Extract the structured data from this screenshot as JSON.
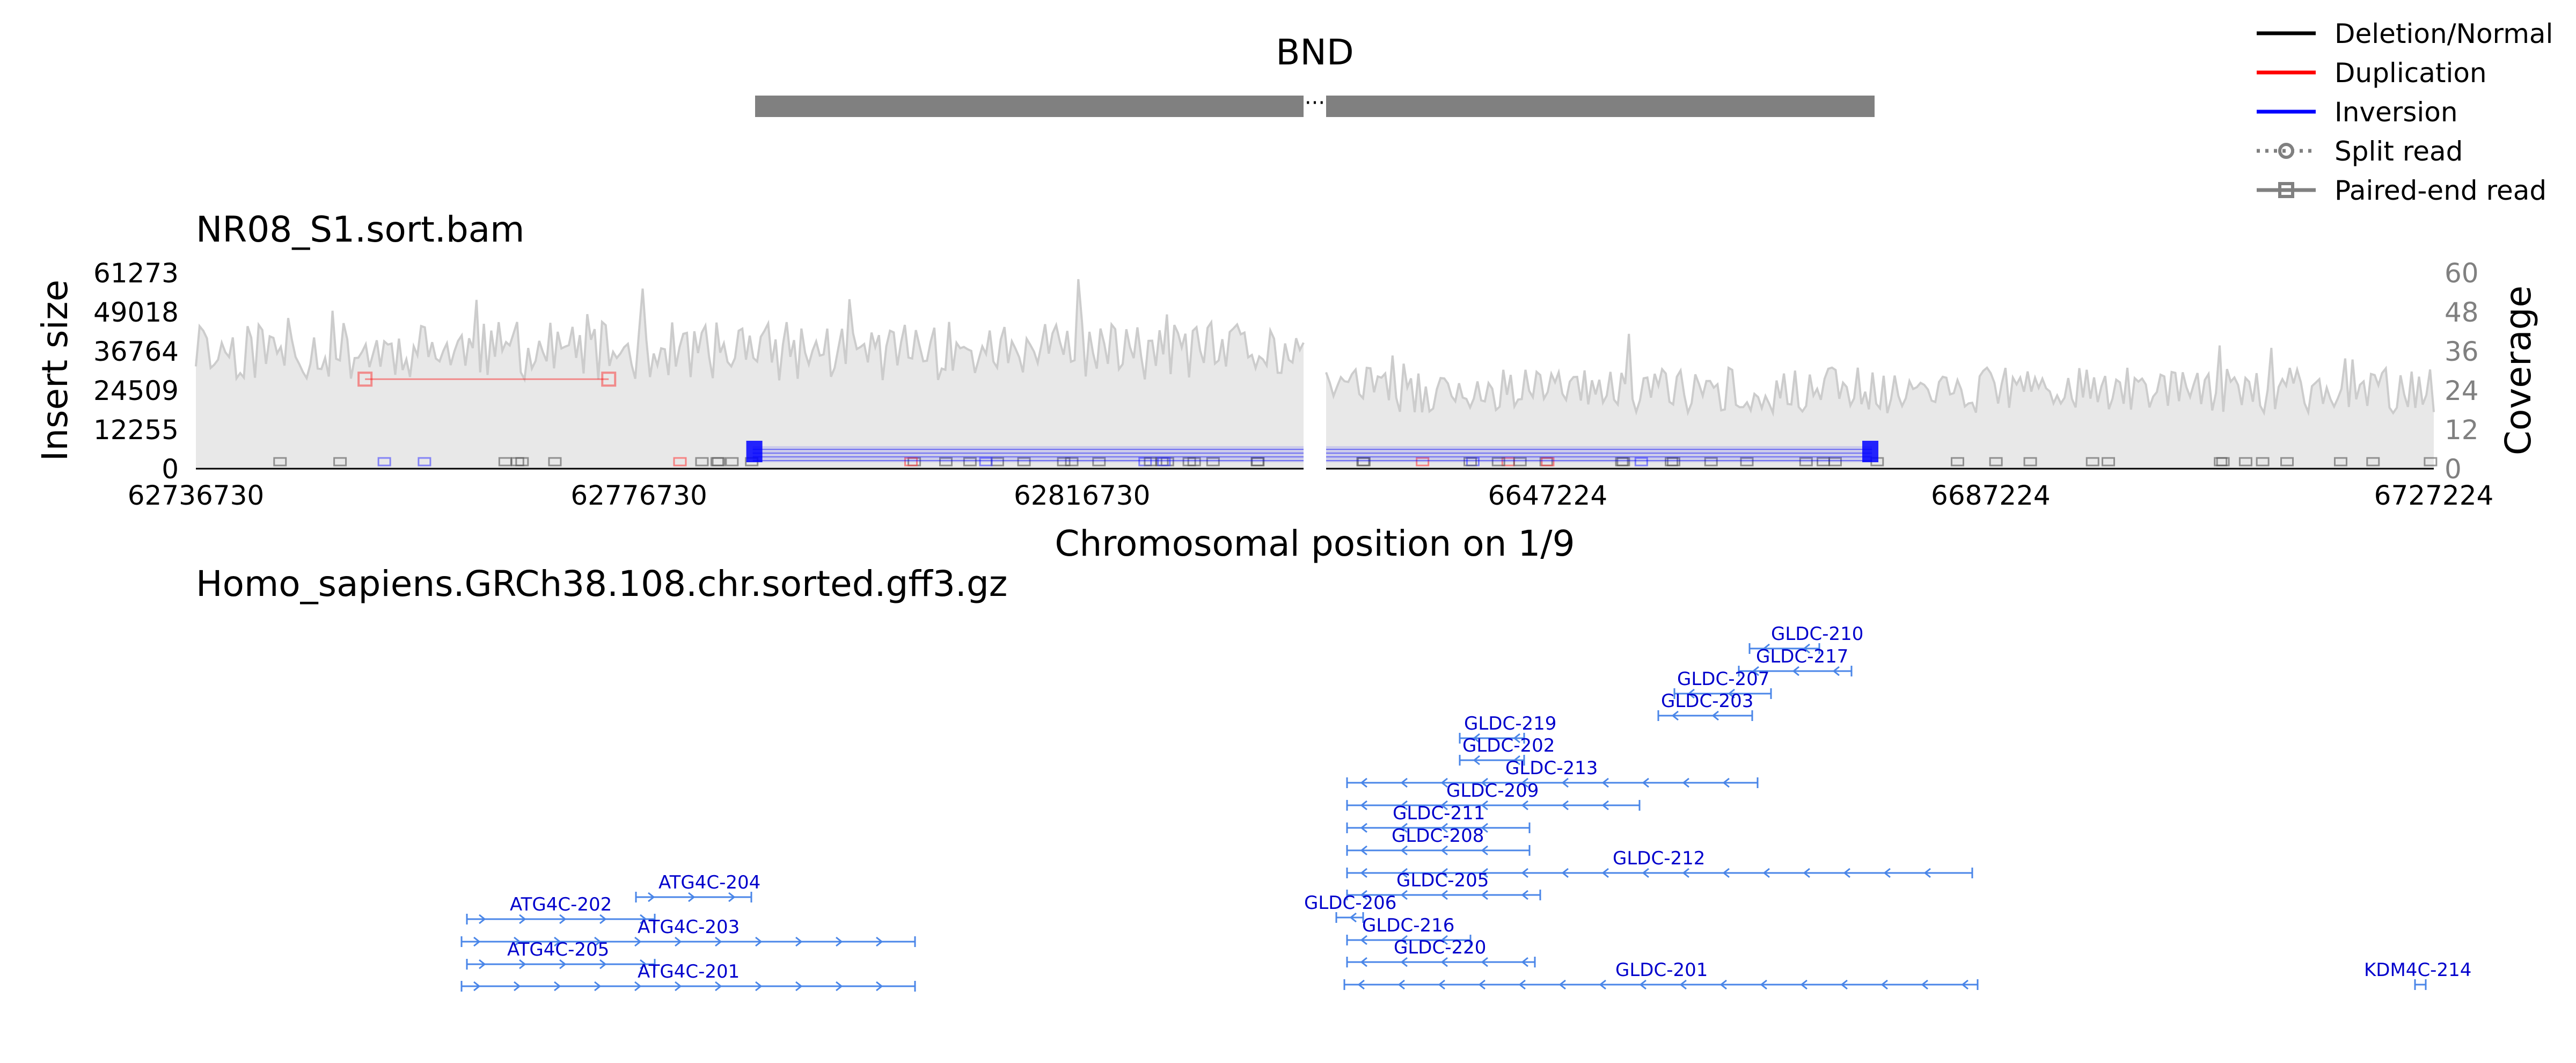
{
  "chart_data": {
    "type": "line",
    "title": "BND",
    "legend": {
      "placement": "top-right",
      "items": [
        {
          "label": "Deletion/Normal",
          "color": "#000000",
          "style": "line"
        },
        {
          "label": "Duplication",
          "color": "#ff0000",
          "style": "line"
        },
        {
          "label": "Inversion",
          "color": "#0000ff",
          "style": "line"
        },
        {
          "label": "Split read",
          "color": "#808080",
          "style": "dotted-circle"
        },
        {
          "label": "Paired-end read",
          "color": "#808080",
          "style": "square"
        }
      ]
    },
    "panel_title": "NR08_S1.sort.bam",
    "xlabel": "Chromosomal position on 1/9",
    "ylabel_left": "Insert size",
    "ylabel_right": "Coverage",
    "ylim_left": [
      0,
      61273
    ],
    "ylim_right": [
      0,
      60
    ],
    "left_yticks": [
      "61273",
      "49018",
      "36764",
      "24509",
      "12255",
      "0"
    ],
    "right_yticks": [
      "60",
      "48",
      "36",
      "24",
      "12",
      "0"
    ],
    "segments": [
      {
        "chrom": "1",
        "xlim": [
          62736730,
          62836730
        ],
        "xticks": [
          "62736730",
          "62776730",
          "62816730"
        ]
      },
      {
        "chrom": "9",
        "xlim": [
          6627224,
          6727224
        ],
        "xticks": [
          "6647224",
          "6687224",
          "6727224"
        ]
      }
    ],
    "coverage_level": [
      {
        "mean": 36,
        "jitter": 9
      },
      {
        "mean": 24,
        "jitter": 7
      }
    ],
    "duplication_read": {
      "start": 62752000,
      "end": 62774000,
      "insert_size": 28000
    },
    "inversion_breakpoints": [
      {
        "chrom": "1",
        "pos": 62787000
      },
      {
        "chrom": "9",
        "pos": 6676500
      }
    ],
    "gene_track": {
      "title": "Homo_sapiens.GRCh38.108.chr.sorted.gff3.gz",
      "genes": [
        {
          "name": "ATG4C-204",
          "segment": 0
        },
        {
          "name": "ATG4C-202",
          "segment": 0
        },
        {
          "name": "ATG4C-203",
          "segment": 0
        },
        {
          "name": "ATG4C-205",
          "segment": 0
        },
        {
          "name": "ATG4C-201",
          "segment": 0
        },
        {
          "name": "GLDC-210",
          "segment": 1
        },
        {
          "name": "GLDC-217",
          "segment": 1
        },
        {
          "name": "GLDC-207",
          "segment": 1
        },
        {
          "name": "GLDC-203",
          "segment": 1
        },
        {
          "name": "GLDC-219",
          "segment": 1
        },
        {
          "name": "GLDC-202",
          "segment": 1
        },
        {
          "name": "GLDC-213",
          "segment": 1
        },
        {
          "name": "GLDC-209",
          "segment": 1
        },
        {
          "name": "GLDC-211",
          "segment": 1
        },
        {
          "name": "GLDC-208",
          "segment": 1
        },
        {
          "name": "GLDC-212",
          "segment": 1
        },
        {
          "name": "GLDC-205",
          "segment": 1
        },
        {
          "name": "GLDC-206",
          "segment": 1
        },
        {
          "name": "GLDC-216",
          "segment": 1
        },
        {
          "name": "GLDC-220",
          "segment": 1
        },
        {
          "name": "GLDC-201",
          "segment": 1
        },
        {
          "name": "KDM4C-214",
          "segment": 1
        }
      ]
    },
    "colors": {
      "bar": "#808080",
      "coverage_fill": "#e8e8e8",
      "coverage_line": "#cccccc",
      "gene": "#4a86e8",
      "gene_label": "#0000cc",
      "duplication": "#ff0000",
      "inversion": "#0000ff"
    }
  }
}
